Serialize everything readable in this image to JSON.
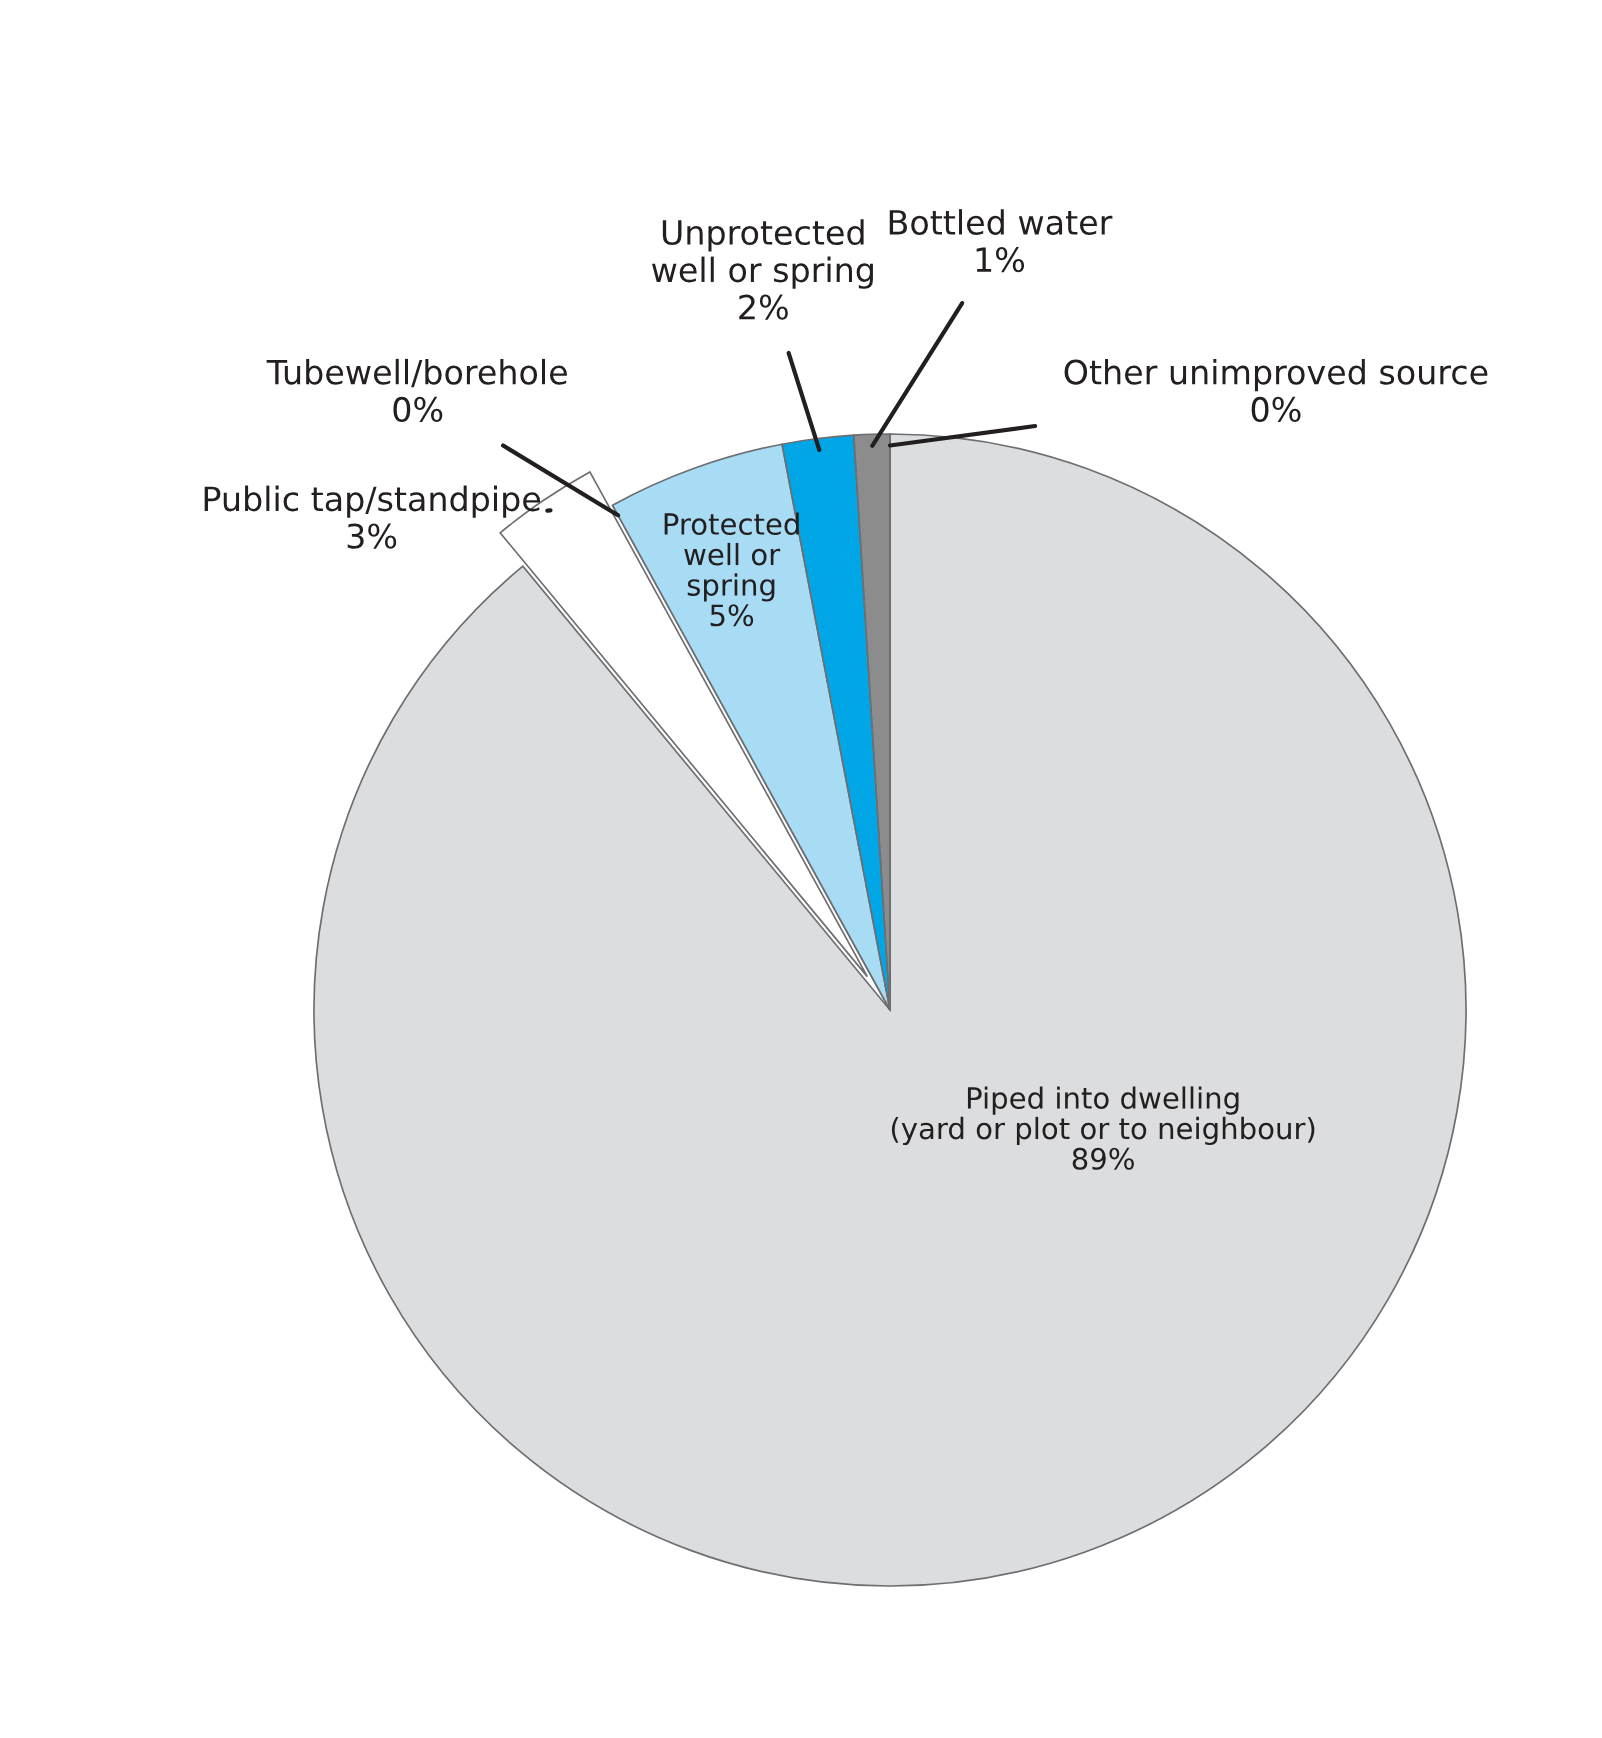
{
  "chart_data": {
    "type": "pie",
    "categories": [
      "Piped into dwelling\n(yard or plot or to neighbour)",
      "Public tap/standpipe",
      "Tubewell/borehole",
      "Protected\nwell or\nspring",
      "Unprotected\nwell or spring",
      "Bottled water",
      "Other unimproved source"
    ],
    "values": [
      89,
      3,
      0,
      5,
      2,
      1,
      0
    ],
    "colors": [
      "#dcddde",
      "#ffffff",
      "#231f20",
      "#a8dcf5",
      "#00a6e6",
      "#8c8c8c",
      "#231f20"
    ],
    "value_labels": [
      "89%",
      "3%",
      "0%",
      "5%",
      "2%",
      "1%",
      "0%"
    ],
    "legend": false
  }
}
